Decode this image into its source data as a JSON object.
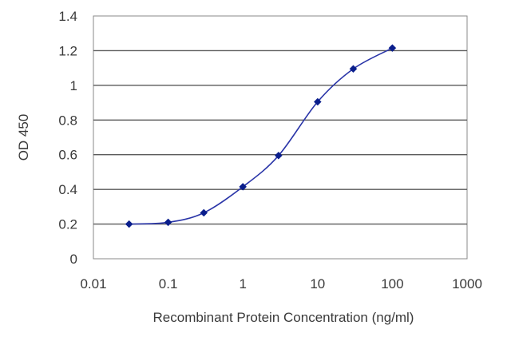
{
  "chart_data": {
    "type": "line",
    "title": "",
    "xlabel": "Recombinant Protein Concentration (ng/ml)",
    "ylabel": "OD 450",
    "x_scale": "log",
    "xlim": [
      0.01,
      1000
    ],
    "ylim": [
      0,
      1.4
    ],
    "x_ticks": [
      0.01,
      0.1,
      1,
      10,
      100,
      1000
    ],
    "x_tick_labels": [
      "0.01",
      "0.1",
      "1",
      "10",
      "100",
      "1000"
    ],
    "y_ticks": [
      0,
      0.2,
      0.4,
      0.6,
      0.8,
      1,
      1.2,
      1.4
    ],
    "y_tick_labels": [
      "0",
      "0.2",
      "0.4",
      "0.6",
      "0.8",
      "1",
      "1.2",
      "1.4"
    ],
    "grid": "horizontal",
    "legend": "none",
    "series": [
      {
        "x": [
          0.03,
          0.1,
          0.3,
          1,
          3,
          10,
          30,
          100
        ],
        "y": [
          0.2,
          0.21,
          0.265,
          0.415,
          0.595,
          0.905,
          1.095,
          1.215
        ],
        "color": "#2a35a8",
        "marker_color": "#0a1e8c"
      }
    ],
    "colors": {
      "plot_background": "#ffffff",
      "gridline": "#5a5a5a",
      "axis": "#8a8a8a"
    }
  }
}
